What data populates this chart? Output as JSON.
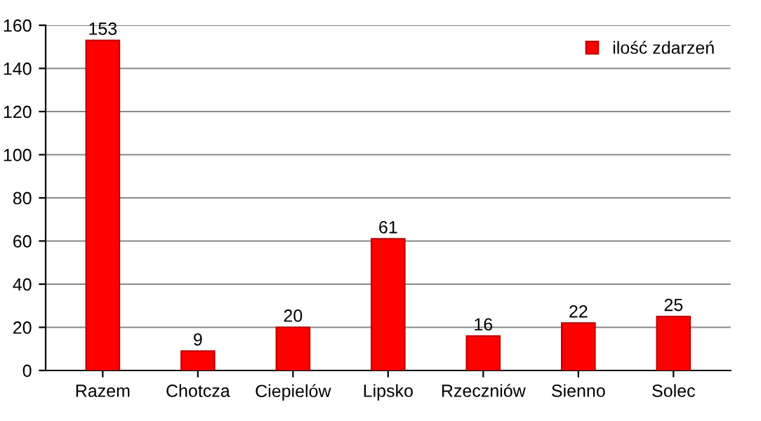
{
  "chart_data": {
    "type": "bar",
    "categories": [
      "Razem",
      "Chotcza",
      "Ciepielów",
      "Lipsko",
      "Rzeczniów",
      "Sienno",
      "Solec"
    ],
    "series": [
      {
        "name": "ilość zdarzeń",
        "color": "#ff0000",
        "values": [
          153,
          9,
          20,
          61,
          16,
          22,
          25
        ]
      }
    ],
    "ylim": [
      0,
      160
    ],
    "yticks": [
      0,
      20,
      40,
      60,
      80,
      100,
      120,
      140,
      160
    ],
    "grid": "y",
    "legend": "top right",
    "data_labels": true
  }
}
